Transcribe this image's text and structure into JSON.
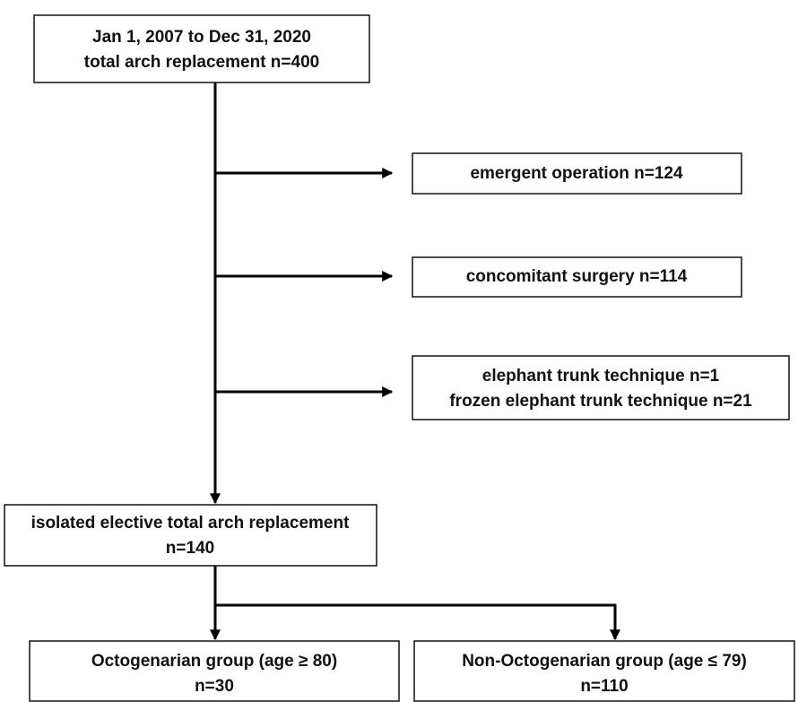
{
  "nodes": [
    {
      "lines": [
        "Jan 1, 2007 to Dec 31, 2020",
        "total arch replacement n=400"
      ]
    },
    {
      "lines": [
        "emergent operation n=124"
      ]
    },
    {
      "lines": [
        "concomitant surgery n=114"
      ]
    },
    {
      "lines": [
        "elephant trunk technique n=1",
        "frozen elephant trunk technique n=21"
      ]
    },
    {
      "lines": [
        "isolated elective total arch replacement",
        "n=140"
      ]
    },
    {
      "lines": [
        "Octogenarian group (age ≥ 80)",
        "n=30"
      ]
    },
    {
      "lines": [
        "Non-Octogenarian group (age ≤ 79)",
        "n=110"
      ]
    }
  ]
}
